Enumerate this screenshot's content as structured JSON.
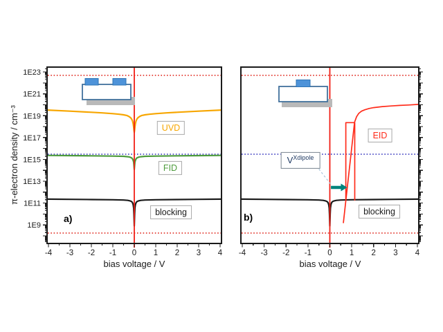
{
  "figure": {
    "background": "#ffffff",
    "accent_colors": {
      "uvd_orange": "#F7A600",
      "fid_green": "#4C9B3B",
      "blocking_black": "#1a1a1a",
      "eid_red": "#FF2B1A",
      "zero_line_red": "#F01E14",
      "dotted_red": "#E02A20",
      "dotted_blue": "#3939BF",
      "arrow_teal": "#00837C",
      "inset_blue": "#4E93D9",
      "inset_gray": "#B9B9B9"
    }
  },
  "chart_data": [
    {
      "id": "a",
      "type": "line",
      "panel_label": "a)",
      "xlabel": "bias voltage / V",
      "ylabel": "π-electron density / cm⁻³",
      "xlim": [
        -4,
        4
      ],
      "ylog_range": [
        7.3,
        23.45
      ],
      "x_ticks": [
        -4,
        -3,
        -2,
        -1,
        0,
        1,
        2,
        3,
        4
      ],
      "y_ticks": [
        {
          "log": 9,
          "label": "1E9"
        },
        {
          "log": 11,
          "label": "1E11"
        },
        {
          "log": 13,
          "label": "1E13"
        },
        {
          "log": 15,
          "label": "1E15"
        },
        {
          "log": 17,
          "label": "1E17"
        },
        {
          "log": 19,
          "label": "1E19"
        },
        {
          "log": 21,
          "label": "1E21"
        },
        {
          "log": 23,
          "label": "1E23"
        }
      ],
      "grid": false,
      "labels": {
        "uvd": "UVD",
        "fid": "FID",
        "blocking": "blocking",
        "panel": "a)"
      },
      "schematic": "planar-device-two-top-electrodes",
      "ref_lines": [
        {
          "axis": "y",
          "value": 5e+22,
          "color": "#E02A20",
          "dash": "dotted",
          "name": "upper-density-limit-line"
        },
        {
          "axis": "y",
          "value": 3000000000000000.0,
          "color": "#3939BF",
          "dash": "dotted",
          "name": "mid-density-reference-line"
        },
        {
          "axis": "y",
          "value": 180000000.0,
          "color": "#E02A20",
          "dash": "dotted",
          "name": "lower-density-limit-line"
        },
        {
          "axis": "x",
          "value": 0,
          "color": "#F01E14",
          "dash": "solid",
          "name": "zero-bias-line"
        }
      ],
      "series": [
        {
          "name": "UVD",
          "color": "#F7A600",
          "width": 2.2,
          "segments": [
            [
              [
                -4.06,
                3.3e+19
              ],
              [
                -3,
                2.6e+19
              ],
              [
                -2,
                2.05e+19
              ],
              [
                -1.5,
                1.8e+19
              ],
              [
                -1,
                1.55e+19
              ],
              [
                -0.7,
                1.35e+19
              ],
              [
                -0.5,
                1.2e+19
              ],
              [
                -0.35,
                1.05e+19
              ],
              [
                -0.25,
                8.5e+18
              ],
              [
                -0.17,
                6.5e+18
              ],
              [
                -0.12,
                4.8e+18
              ],
              [
                -0.08,
                3.2e+18
              ],
              [
                -0.05,
                1.8e+18
              ],
              [
                -0.03,
                9e+17
              ],
              [
                -0.015,
                5e+17
              ],
              [
                0,
                3e+17
              ],
              [
                0.015,
                5e+17
              ],
              [
                0.03,
                9e+17
              ],
              [
                0.05,
                1.8e+18
              ],
              [
                0.08,
                3.2e+18
              ],
              [
                0.12,
                4.8e+18
              ],
              [
                0.17,
                6.5e+18
              ],
              [
                0.25,
                8.5e+18
              ],
              [
                0.35,
                1.05e+19
              ],
              [
                0.5,
                1.2e+19
              ],
              [
                0.7,
                1.35e+19
              ],
              [
                1,
                1.55e+19
              ],
              [
                1.5,
                1.8e+19
              ],
              [
                2,
                2.05e+19
              ],
              [
                3,
                2.6e+19
              ],
              [
                4.06,
                3.3e+19
              ]
            ]
          ]
        },
        {
          "name": "FID",
          "color": "#4C9B3B",
          "width": 2.2,
          "segments": [
            [
              [
                -4.06,
                2300000000000000.0
              ],
              [
                -3,
                2200000000000000.0
              ],
              [
                -2,
                2100000000000000.0
              ],
              [
                -1,
                2000000000000000.0
              ],
              [
                -0.5,
                1900000000000000.0
              ],
              [
                -0.3,
                1750000000000000.0
              ],
              [
                -0.2,
                1600000000000000.0
              ],
              [
                -0.12,
                1350000000000000.0
              ],
              [
                -0.08,
                1100000000000000.0
              ],
              [
                -0.05,
                800000000000000.0
              ],
              [
                -0.03,
                550000000000000.0
              ],
              [
                -0.015,
                300000000000000.0
              ],
              [
                0,
                120000000000000.0
              ],
              [
                0.015,
                300000000000000.0
              ],
              [
                0.03,
                550000000000000.0
              ],
              [
                0.05,
                800000000000000.0
              ],
              [
                0.08,
                1100000000000000.0
              ],
              [
                0.12,
                1350000000000000.0
              ],
              [
                0.2,
                1600000000000000.0
              ],
              [
                0.3,
                1750000000000000.0
              ],
              [
                0.5,
                1900000000000000.0
              ],
              [
                1,
                2000000000000000.0
              ],
              [
                2,
                2100000000000000.0
              ],
              [
                3,
                2200000000000000.0
              ],
              [
                4.06,
                2300000000000000.0
              ]
            ]
          ]
        },
        {
          "name": "blocking",
          "color": "#1a1a1a",
          "width": 2.2,
          "segments": [
            [
              [
                -4.06,
                230000000000.0
              ],
              [
                -3,
                220000000000.0
              ],
              [
                -2,
                210000000000.0
              ],
              [
                -1,
                200000000000.0
              ],
              [
                -0.5,
                190000000000.0
              ],
              [
                -0.3,
                175000000000.0
              ],
              [
                -0.2,
                160000000000.0
              ],
              [
                -0.12,
                135000000000.0
              ],
              [
                -0.08,
                105000000000.0
              ],
              [
                -0.05,
                70000000000.0
              ],
              [
                -0.03,
                35000000000.0
              ],
              [
                -0.015,
                10000000000.0
              ],
              [
                0,
                800000000.0
              ],
              [
                0.015,
                10000000000.0
              ],
              [
                0.03,
                35000000000.0
              ],
              [
                0.05,
                70000000000.0
              ],
              [
                0.08,
                105000000000.0
              ],
              [
                0.12,
                135000000000.0
              ],
              [
                0.2,
                160000000000.0
              ],
              [
                0.3,
                175000000000.0
              ],
              [
                0.5,
                190000000000.0
              ],
              [
                1,
                200000000000.0
              ],
              [
                2,
                210000000000.0
              ],
              [
                3,
                220000000000.0
              ],
              [
                4.06,
                230000000000.0
              ]
            ]
          ]
        }
      ],
      "annotations": []
    },
    {
      "id": "b",
      "type": "line",
      "panel_label": "b)",
      "xlabel": "bias voltage / V",
      "ylabel": "π-electron density / cm⁻³",
      "xlim": [
        -4,
        4
      ],
      "ylog_range": [
        7.3,
        23.45
      ],
      "x_ticks": [
        -4,
        -3,
        -2,
        -1,
        0,
        1,
        2,
        3,
        4
      ],
      "y_ticks": [],
      "grid": false,
      "labels": {
        "eid": "EID",
        "blocking": "blocking",
        "panel": "b)",
        "vxdipole_base": "V",
        "vxdipole_sup": "Xdipole"
      },
      "schematic": "planar-device-one-top-electrode",
      "ref_lines": [
        {
          "axis": "y",
          "value": 5e+22,
          "color": "#E02A20",
          "dash": "dotted",
          "name": "upper-density-limit-line"
        },
        {
          "axis": "y",
          "value": 3000000000000000.0,
          "color": "#3939BF",
          "dash": "dotted",
          "name": "mid-density-reference-line"
        },
        {
          "axis": "y",
          "value": 180000000.0,
          "color": "#E02A20",
          "dash": "dotted",
          "name": "lower-density-limit-line"
        },
        {
          "axis": "x",
          "value": 0,
          "color": "#F01E14",
          "dash": "solid",
          "name": "zero-bias-line"
        }
      ],
      "series": [
        {
          "name": "blocking",
          "color": "#1a1a1a",
          "width": 2.2,
          "segments": [
            [
              [
                -4.06,
                230000000000.0
              ],
              [
                -3,
                220000000000.0
              ],
              [
                -2,
                210000000000.0
              ],
              [
                -1,
                200000000000.0
              ],
              [
                -0.5,
                190000000000.0
              ],
              [
                -0.3,
                175000000000.0
              ],
              [
                -0.2,
                160000000000.0
              ],
              [
                -0.12,
                135000000000.0
              ],
              [
                -0.08,
                105000000000.0
              ],
              [
                -0.05,
                70000000000.0
              ],
              [
                -0.03,
                35000000000.0
              ],
              [
                -0.015,
                10000000000.0
              ],
              [
                0,
                800000000.0
              ],
              [
                0.015,
                10000000000.0
              ],
              [
                0.03,
                35000000000.0
              ],
              [
                0.05,
                70000000000.0
              ],
              [
                0.08,
                105000000000.0
              ],
              [
                0.12,
                135000000000.0
              ],
              [
                0.2,
                160000000000.0
              ],
              [
                0.3,
                175000000000.0
              ],
              [
                0.5,
                190000000000.0
              ],
              [
                1,
                200000000000.0
              ],
              [
                2,
                210000000000.0
              ],
              [
                3,
                220000000000.0
              ],
              [
                4.06,
                230000000000.0
              ]
            ]
          ]
        },
        {
          "name": "EID",
          "color": "#FF2B1A",
          "width": 1.7,
          "segments": [
            [
              [
                0.62,
                1600000000.0
              ],
              [
                1.13,
                2.5e+18
              ],
              [
                1.22,
                8e+18
              ],
              [
                1.32,
                1.6e+19
              ],
              [
                1.45,
                2.6e+19
              ],
              [
                1.6,
                3.5e+19
              ],
              [
                1.8,
                4.6e+19
              ],
              [
                2.0,
                5.5e+19
              ],
              [
                2.4,
                6.8e+19
              ],
              [
                2.8,
                7.8e+19
              ],
              [
                3.2,
                8.7e+19
              ],
              [
                3.6,
                9.5e+19
              ],
              [
                4.06,
                1.08e+20
              ]
            ],
            [
              [
                0.73,
                190000000000.0
              ],
              [
                0.73,
                2.3e+18
              ],
              [
                1.14,
                2.3e+18
              ],
              [
                1.14,
                190000000000.0
              ]
            ]
          ]
        }
      ],
      "annotations": [
        {
          "type": "arrow",
          "name": "switch-voltage-arrow",
          "color": "#00837C",
          "from": [
            0.05,
            2700000000000.0
          ],
          "to": [
            0.79,
            2700000000000.0
          ]
        },
        {
          "type": "dashed-line",
          "name": "vxdipole-connector-line",
          "color": "#A8C4DC",
          "from": [
            -0.5,
            130000000000000.0
          ],
          "to": [
            0.02,
            6000000000000.0
          ]
        }
      ]
    }
  ]
}
